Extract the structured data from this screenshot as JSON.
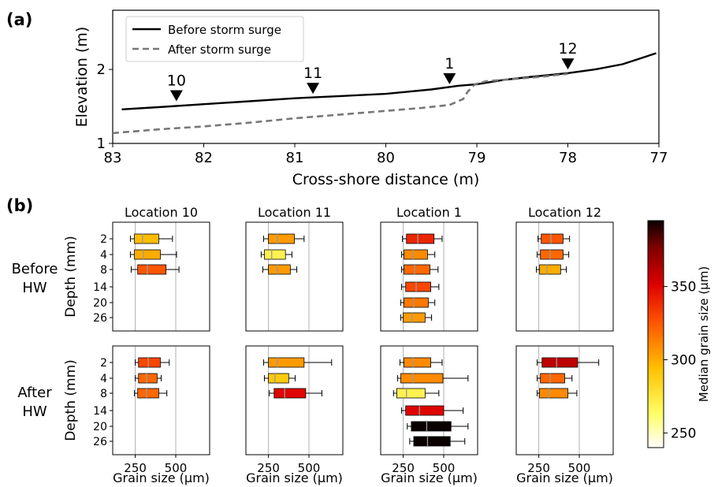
{
  "chart_data": [
    {
      "type": "line",
      "panel_label": "(a)",
      "xlabel": "Cross-shore distance (m)",
      "ylabel": "Elevation (m)",
      "xlim": [
        83,
        77
      ],
      "ylim": [
        1,
        2.8
      ],
      "x_reversed": true,
      "xticks": [
        83,
        82,
        81,
        80,
        79,
        78,
        77
      ],
      "yticks": [
        1,
        2
      ],
      "grid": false,
      "legend": "top-left",
      "series": [
        {
          "name": "Before storm surge",
          "color": "#000000",
          "dash": "solid",
          "x": [
            82.9,
            82.5,
            82.0,
            81.5,
            81.0,
            80.5,
            80.0,
            79.5,
            79.2,
            79.0,
            78.7,
            78.4,
            78.0,
            77.7,
            77.4,
            77.2,
            77.03
          ],
          "y": [
            1.46,
            1.49,
            1.53,
            1.57,
            1.61,
            1.64,
            1.67,
            1.73,
            1.78,
            1.8,
            1.86,
            1.9,
            1.95,
            2.0,
            2.07,
            2.15,
            2.22
          ]
        },
        {
          "name": "After storm surge",
          "color": "#777777",
          "dash": "dashed",
          "x": [
            83.0,
            82.5,
            82.0,
            81.5,
            81.0,
            80.5,
            80.0,
            79.6,
            79.3,
            79.15,
            79.1,
            79.02,
            78.9,
            78.6,
            78.3,
            78.0
          ],
          "y": [
            1.14,
            1.19,
            1.23,
            1.28,
            1.34,
            1.39,
            1.44,
            1.48,
            1.52,
            1.6,
            1.7,
            1.8,
            1.84,
            1.87,
            1.9,
            1.94
          ]
        }
      ],
      "annotations": [
        {
          "label": "10",
          "x": 82.3,
          "y": 1.57
        },
        {
          "label": "11",
          "x": 80.8,
          "y": 1.67
        },
        {
          "label": "1",
          "x": 79.3,
          "y": 1.8
        },
        {
          "label": "12",
          "x": 78.0,
          "y": 2.0
        }
      ]
    },
    {
      "type": "boxplot",
      "panel_label": "(b)",
      "xlabel": "Grain size (μm)",
      "ylabel": "Depth (mm)",
      "xlim": [
        140,
        680
      ],
      "xticks": [
        250,
        500
      ],
      "depths": [
        "2",
        "4",
        "8",
        "14",
        "20",
        "26"
      ],
      "rows": [
        "Before HW",
        "After HW"
      ],
      "columns": [
        "Location 10",
        "Location 11",
        "Location 1",
        "Location 12"
      ],
      "colorbar": {
        "label": "Median grain size (μm)",
        "range": [
          240,
          395
        ],
        "ticks": [
          250,
          300,
          350
        ]
      },
      "panels": [
        {
          "row": "Before HW",
          "column": "Location 10",
          "boxes": [
            {
              "depth": "2",
              "whisker_low": 220,
              "q1": 245,
              "median": 295,
              "q3": 395,
              "whisker_high": 480
            },
            {
              "depth": "4",
              "whisker_low": 220,
              "q1": 245,
              "median": 300,
              "q3": 405,
              "whisker_high": 505
            },
            {
              "depth": "8",
              "whisker_low": 225,
              "q1": 265,
              "median": 325,
              "q3": 440,
              "whisker_high": 520
            }
          ]
        },
        {
          "row": "Before HW",
          "column": "Location 11",
          "boxes": [
            {
              "depth": "2",
              "whisker_low": 220,
              "q1": 250,
              "median": 305,
              "q3": 410,
              "whisker_high": 470
            },
            {
              "depth": "4",
              "whisker_low": 205,
              "q1": 225,
              "median": 270,
              "q3": 355,
              "whisker_high": 395
            },
            {
              "depth": "8",
              "whisker_low": 215,
              "q1": 250,
              "median": 305,
              "q3": 385,
              "whisker_high": 425
            }
          ]
        },
        {
          "row": "Before HW",
          "column": "Location 1",
          "boxes": [
            {
              "depth": "2",
              "whisker_low": 245,
              "q1": 270,
              "median": 340,
              "q3": 440,
              "whisker_high": 490
            },
            {
              "depth": "4",
              "whisker_low": 240,
              "q1": 255,
              "median": 310,
              "q3": 400,
              "whisker_high": 445
            },
            {
              "depth": "8",
              "whisker_low": 240,
              "q1": 255,
              "median": 320,
              "q3": 415,
              "whisker_high": 465
            },
            {
              "depth": "14",
              "whisker_low": 240,
              "q1": 265,
              "median": 330,
              "q3": 420,
              "whisker_high": 470
            },
            {
              "depth": "20",
              "whisker_low": 235,
              "q1": 255,
              "median": 315,
              "q3": 405,
              "whisker_high": 445
            },
            {
              "depth": "26",
              "whisker_low": 235,
              "q1": 250,
              "median": 305,
              "q3": 385,
              "whisker_high": 425
            }
          ]
        },
        {
          "row": "Before HW",
          "column": "Location 12",
          "boxes": [
            {
              "depth": "2",
              "whisker_low": 245,
              "q1": 265,
              "median": 325,
              "q3": 400,
              "whisker_high": 440
            },
            {
              "depth": "4",
              "whisker_low": 240,
              "q1": 260,
              "median": 320,
              "q3": 400,
              "whisker_high": 435
            },
            {
              "depth": "8",
              "whisker_low": 235,
              "q1": 255,
              "median": 300,
              "q3": 385,
              "whisker_high": 420
            }
          ]
        },
        {
          "row": "After HW",
          "column": "Location 10",
          "boxes": [
            {
              "depth": "2",
              "whisker_low": 250,
              "q1": 270,
              "median": 330,
              "q3": 405,
              "whisker_high": 460
            },
            {
              "depth": "4",
              "whisker_low": 250,
              "q1": 270,
              "median": 320,
              "q3": 385,
              "whisker_high": 410
            },
            {
              "depth": "8",
              "whisker_low": 245,
              "q1": 265,
              "median": 320,
              "q3": 395,
              "whisker_high": 445
            }
          ]
        },
        {
          "row": "After HW",
          "column": "Location 11",
          "boxes": [
            {
              "depth": "2",
              "whisker_low": 220,
              "q1": 250,
              "median": 305,
              "q3": 470,
              "whisker_high": 640
            },
            {
              "depth": "4",
              "whisker_low": 225,
              "q1": 250,
              "median": 290,
              "q3": 375,
              "whisker_high": 415
            },
            {
              "depth": "8",
              "whisker_low": 255,
              "q1": 285,
              "median": 350,
              "q3": 480,
              "whisker_high": 580
            }
          ]
        },
        {
          "row": "After HW",
          "column": "Location 1",
          "boxes": [
            {
              "depth": "2",
              "whisker_low": 230,
              "q1": 255,
              "median": 310,
              "q3": 420,
              "whisker_high": 490
            },
            {
              "depth": "4",
              "whisker_low": 215,
              "q1": 235,
              "median": 310,
              "q3": 495,
              "whisker_high": 650
            },
            {
              "depth": "8",
              "whisker_low": 190,
              "q1": 210,
              "median": 270,
              "q3": 385,
              "whisker_high": 470
            },
            {
              "depth": "14",
              "whisker_low": 240,
              "q1": 265,
              "median": 350,
              "q3": 500,
              "whisker_high": 620
            },
            {
              "depth": "20",
              "whisker_low": 275,
              "q1": 300,
              "median": 395,
              "q3": 545,
              "whisker_high": 650
            },
            {
              "depth": "26",
              "whisker_low": 290,
              "q1": 315,
              "median": 400,
              "q3": 540,
              "whisker_high": 630
            }
          ]
        },
        {
          "row": "After HW",
          "column": "Location 12",
          "boxes": [
            {
              "depth": "2",
              "whisker_low": 240,
              "q1": 270,
              "median": 360,
              "q3": 490,
              "whisker_high": 620
            },
            {
              "depth": "4",
              "whisker_low": 240,
              "q1": 260,
              "median": 320,
              "q3": 410,
              "whisker_high": 455
            },
            {
              "depth": "8",
              "whisker_low": 240,
              "q1": 255,
              "median": 310,
              "q3": 430,
              "whisker_high": 485
            }
          ]
        }
      ]
    }
  ]
}
